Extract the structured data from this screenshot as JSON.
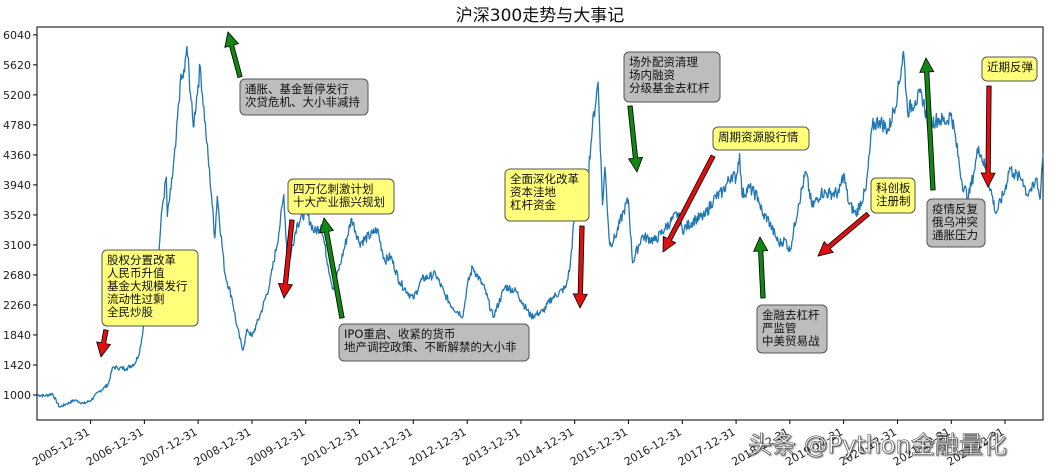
{
  "chart_data": {
    "type": "line",
    "title": "沪深300走势与大事记",
    "xlabel": "",
    "ylabel": "",
    "xlim": [
      "2005-01-01",
      "2023-09-15"
    ],
    "ylim": [
      650,
      6150
    ],
    "x_ticks": [
      "2005-12-31",
      "2006-12-31",
      "2007-12-31",
      "2008-12-31",
      "2009-12-31",
      "2010-12-31",
      "2011-12-31",
      "2012-12-31",
      "2013-12-31",
      "2014-12-31",
      "2015-12-31",
      "2016-12-31",
      "2017-12-31",
      "2018-12-31",
      "2019-12-31",
      "2020-12-31",
      "2021-12-31",
      "2022-12-31"
    ],
    "y_ticks": [
      1000,
      1420,
      1840,
      2260,
      2680,
      3100,
      3520,
      3940,
      4360,
      4780,
      5200,
      5620,
      6040
    ],
    "grid": false,
    "series": [
      {
        "color": "#1f77b4",
        "points": [
          [
            "2005-01-04",
            1000
          ],
          [
            "2005-03-01",
            990
          ],
          [
            "2005-04-15",
            1020
          ],
          [
            "2005-06-03",
            830
          ],
          [
            "2005-07-15",
            870
          ],
          [
            "2005-09-15",
            930
          ],
          [
            "2005-11-15",
            880
          ],
          [
            "2005-12-31",
            923
          ],
          [
            "2006-02-28",
            1050
          ],
          [
            "2006-04-30",
            1150
          ],
          [
            "2006-05-31",
            1390
          ],
          [
            "2006-06-30",
            1380
          ],
          [
            "2006-08-31",
            1370
          ],
          [
            "2006-10-31",
            1450
          ],
          [
            "2006-11-30",
            1620
          ],
          [
            "2006-12-31",
            2041
          ],
          [
            "2007-01-31",
            2340
          ],
          [
            "2007-03-31",
            2780
          ],
          [
            "2007-04-30",
            3600
          ],
          [
            "2007-05-29",
            4050
          ],
          [
            "2007-06-05",
            3500
          ],
          [
            "2007-06-30",
            3880
          ],
          [
            "2007-07-31",
            4470
          ],
          [
            "2007-08-31",
            5350
          ],
          [
            "2007-09-30",
            5520
          ],
          [
            "2007-10-16",
            5877
          ],
          [
            "2007-11-28",
            4750
          ],
          [
            "2007-12-31",
            5338
          ],
          [
            "2008-01-14",
            5600
          ],
          [
            "2008-02-28",
            4530
          ],
          [
            "2008-03-31",
            3790
          ],
          [
            "2008-04-22",
            3200
          ],
          [
            "2008-05-09",
            3780
          ],
          [
            "2008-06-30",
            2700
          ],
          [
            "2008-08-18",
            2350
          ],
          [
            "2008-09-18",
            1980
          ],
          [
            "2008-10-28",
            1627
          ],
          [
            "2008-11-30",
            1920
          ],
          [
            "2008-12-31",
            1817
          ],
          [
            "2009-01-31",
            1990
          ],
          [
            "2009-02-28",
            2140
          ],
          [
            "2009-04-30",
            2550
          ],
          [
            "2009-06-30",
            3250
          ],
          [
            "2009-08-04",
            3803
          ],
          [
            "2009-08-31",
            2780
          ],
          [
            "2009-10-31",
            3380
          ],
          [
            "2009-12-31",
            3575
          ],
          [
            "2010-02-28",
            3280
          ],
          [
            "2010-04-15",
            3380
          ],
          [
            "2010-05-31",
            2820
          ],
          [
            "2010-07-05",
            2480
          ],
          [
            "2010-08-31",
            2900
          ],
          [
            "2010-11-08",
            3470
          ],
          [
            "2010-12-31",
            3128
          ],
          [
            "2011-03-31",
            3260
          ],
          [
            "2011-04-30",
            3320
          ],
          [
            "2011-06-20",
            2880
          ],
          [
            "2011-07-31",
            2940
          ],
          [
            "2011-09-30",
            2580
          ],
          [
            "2011-12-31",
            2345
          ],
          [
            "2012-02-28",
            2620
          ],
          [
            "2012-05-31",
            2690
          ],
          [
            "2012-07-31",
            2410
          ],
          [
            "2012-09-26",
            2220
          ],
          [
            "2012-12-03",
            2110
          ],
          [
            "2012-12-31",
            2523
          ],
          [
            "2013-02-06",
            2790
          ],
          [
            "2013-04-30",
            2480
          ],
          [
            "2013-06-25",
            2086
          ],
          [
            "2013-09-15",
            2520
          ],
          [
            "2013-11-30",
            2450
          ],
          [
            "2013-12-31",
            2330
          ],
          [
            "2014-03-10",
            2100
          ],
          [
            "2014-05-30",
            2170
          ],
          [
            "2014-07-31",
            2360
          ],
          [
            "2014-10-31",
            2500
          ],
          [
            "2014-11-30",
            2800
          ],
          [
            "2014-12-31",
            3533
          ],
          [
            "2015-02-28",
            3700
          ],
          [
            "2015-03-31",
            4050
          ],
          [
            "2015-04-30",
            4750
          ],
          [
            "2015-06-08",
            5380
          ],
          [
            "2015-07-08",
            3660
          ],
          [
            "2015-07-24",
            4190
          ],
          [
            "2015-08-26",
            3100
          ],
          [
            "2015-09-30",
            3200
          ],
          [
            "2015-11-30",
            3580
          ],
          [
            "2015-12-31",
            3731
          ],
          [
            "2016-01-28",
            2850
          ],
          [
            "2016-03-31",
            3220
          ],
          [
            "2016-06-30",
            3160
          ],
          [
            "2016-08-31",
            3320
          ],
          [
            "2016-11-30",
            3540
          ],
          [
            "2016-12-31",
            3310
          ],
          [
            "2017-03-31",
            3460
          ],
          [
            "2017-05-31",
            3500
          ],
          [
            "2017-07-31",
            3740
          ],
          [
            "2017-09-30",
            3840
          ],
          [
            "2017-11-30",
            4080
          ],
          [
            "2017-12-31",
            4031
          ],
          [
            "2018-01-24",
            4380
          ],
          [
            "2018-02-09",
            3800
          ],
          [
            "2018-03-31",
            3900
          ],
          [
            "2018-05-31",
            3760
          ],
          [
            "2018-06-30",
            3510
          ],
          [
            "2018-07-31",
            3480
          ],
          [
            "2018-08-31",
            3330
          ],
          [
            "2018-10-18",
            3120
          ],
          [
            "2018-11-30",
            3170
          ],
          [
            "2018-12-31",
            3011
          ],
          [
            "2019-02-28",
            3670
          ],
          [
            "2019-04-19",
            4120
          ],
          [
            "2019-05-31",
            3630
          ],
          [
            "2019-07-31",
            3830
          ],
          [
            "2019-09-30",
            3820
          ],
          [
            "2019-11-30",
            3830
          ],
          [
            "2019-12-31",
            4096
          ],
          [
            "2020-02-03",
            3690
          ],
          [
            "2020-03-23",
            3530
          ],
          [
            "2020-05-31",
            3870
          ],
          [
            "2020-07-13",
            4760
          ],
          [
            "2020-08-31",
            4840
          ],
          [
            "2020-10-31",
            4700
          ],
          [
            "2020-12-31",
            5211
          ],
          [
            "2021-02-10",
            5807
          ],
          [
            "2021-03-09",
            4970
          ],
          [
            "2021-04-30",
            5120
          ],
          [
            "2021-06-15",
            5200
          ],
          [
            "2021-07-28",
            4790
          ],
          [
            "2021-09-30",
            4860
          ],
          [
            "2021-11-30",
            4830
          ],
          [
            "2021-12-31",
            4940
          ],
          [
            "2022-01-31",
            4560
          ],
          [
            "2022-03-15",
            3970
          ],
          [
            "2022-04-26",
            3760
          ],
          [
            "2022-05-31",
            4090
          ],
          [
            "2022-07-05",
            4480
          ],
          [
            "2022-08-31",
            4100
          ],
          [
            "2022-10-31",
            3540
          ],
          [
            "2022-12-31",
            3871
          ],
          [
            "2023-01-31",
            4180
          ],
          [
            "2023-02-28",
            4100
          ],
          [
            "2023-03-31",
            4050
          ],
          [
            "2023-04-30",
            4020
          ],
          [
            "2023-05-31",
            3800
          ],
          [
            "2023-06-15",
            3870
          ],
          [
            "2023-07-15",
            3900
          ],
          [
            "2023-07-31",
            4040
          ],
          [
            "2023-08-25",
            3740
          ],
          [
            "2023-08-31",
            3900
          ],
          [
            "2023-09-05",
            4100
          ],
          [
            "2023-09-15",
            4380
          ]
        ]
      }
    ],
    "annotations": [
      {
        "text": [
          "股权分置改革",
          "人民币升值",
          "基金大规模发行",
          "流动性过剩",
          "全民炒股"
        ],
        "box_color": "#ffff7a",
        "arrow_color": "#e01010",
        "arrow": "red-down"
      },
      {
        "text": [
          "通胀、基金暂停发行",
          "次贷危机、大小非减持"
        ],
        "box_color": "#bdbdbd",
        "arrow_color": "#118811",
        "arrow": "green-up"
      },
      {
        "text": [
          "四万亿刺激计划",
          "十大产业振兴规划"
        ],
        "box_color": "#ffff7a",
        "arrow_color": "#e01010",
        "arrow": "red-down"
      },
      {
        "text": [
          "IPO重启、收紧的货币",
          "地产调控政策、不断解禁的大小非"
        ],
        "box_color": "#bdbdbd",
        "arrow_color": "#118811",
        "arrow": "green-up"
      },
      {
        "text": [
          "全面深化改革",
          "资本洼地",
          "杠杆资金"
        ],
        "box_color": "#ffff7a",
        "arrow_color": "#e01010",
        "arrow": "red-down"
      },
      {
        "text": [
          "场外配资清理",
          "场内融资",
          "分级基金去杠杆"
        ],
        "box_color": "#bdbdbd",
        "arrow_color": "#118811",
        "arrow": "green-down"
      },
      {
        "text": [
          "周期资源股行情"
        ],
        "box_color": "#ffff7a",
        "arrow_color": "#e01010",
        "arrow": "red-diag"
      },
      {
        "text": [
          "金融去杠杆",
          "严监管",
          "中美贸易战"
        ],
        "box_color": "#bdbdbd",
        "arrow_color": "#118811",
        "arrow": "green-up"
      },
      {
        "text": [
          "科创板",
          "注册制"
        ],
        "box_color": "#ffff7a",
        "arrow_color": "#e01010",
        "arrow": "red-diag"
      },
      {
        "text": [
          "疫情反复",
          "俄乌冲突",
          "通胀压力"
        ],
        "box_color": "#bdbdbd",
        "arrow_color": "#118811",
        "arrow": "green-up"
      },
      {
        "text": [
          "近期反弹"
        ],
        "box_color": "#ffff7a",
        "arrow_color": "#e01010",
        "arrow": "red-down"
      }
    ]
  },
  "watermark": "头条 @Python金融量化"
}
